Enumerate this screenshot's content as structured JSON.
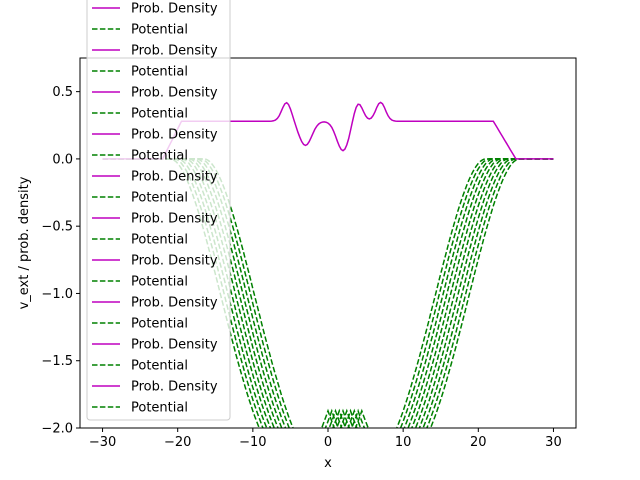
{
  "chart_data": {
    "type": "line",
    "title": "",
    "xlabel": "x",
    "ylabel": "v_ext / prob. density",
    "xlim": [
      -33,
      33
    ],
    "ylim": [
      -2.0,
      0.75
    ],
    "xticks": [
      -30,
      -20,
      -10,
      0,
      10,
      20,
      30
    ],
    "xtick_labels": [
      "−30",
      "−20",
      "−10",
      "0",
      "10",
      "20",
      "30"
    ],
    "yticks": [
      0.5,
      0.0,
      -0.5,
      -1.0,
      -1.5,
      -2.0
    ],
    "ytick_labels": [
      "0.5",
      "0.0",
      "−0.5",
      "−1.0",
      "−1.5",
      "−2.0"
    ],
    "grid": false,
    "legend_placement": "upper-left",
    "colors": {
      "density": "#bf00bf",
      "potential": "#008000",
      "legend_bg": "#ffffff"
    },
    "legend": [
      {
        "label": "Prob. Density",
        "style": "solid",
        "color": "#bf00bf"
      },
      {
        "label": "Potential",
        "style": "dashed",
        "color": "#008000"
      },
      {
        "label": "Prob. Density",
        "style": "solid",
        "color": "#bf00bf"
      },
      {
        "label": "Potential",
        "style": "dashed",
        "color": "#008000"
      },
      {
        "label": "Prob. Density",
        "style": "solid",
        "color": "#bf00bf"
      },
      {
        "label": "Potential",
        "style": "dashed",
        "color": "#008000"
      },
      {
        "label": "Prob. Density",
        "style": "solid",
        "color": "#bf00bf"
      },
      {
        "label": "Potential",
        "style": "dashed",
        "color": "#008000"
      },
      {
        "label": "Prob. Density",
        "style": "solid",
        "color": "#bf00bf"
      },
      {
        "label": "Potential",
        "style": "dashed",
        "color": "#008000"
      },
      {
        "label": "Prob. Density",
        "style": "solid",
        "color": "#bf00bf"
      },
      {
        "label": "Potential",
        "style": "dashed",
        "color": "#008000"
      },
      {
        "label": "Prob. Density",
        "style": "solid",
        "color": "#bf00bf"
      },
      {
        "label": "Potential",
        "style": "dashed",
        "color": "#008000"
      },
      {
        "label": "Prob. Density",
        "style": "solid",
        "color": "#bf00bf"
      },
      {
        "label": "Potential",
        "style": "dashed",
        "color": "#008000"
      },
      {
        "label": "Prob. Density",
        "style": "solid",
        "color": "#bf00bf"
      },
      {
        "label": "Potential",
        "style": "dashed",
        "color": "#008000"
      },
      {
        "label": "Prob. Density",
        "style": "solid",
        "color": "#bf00bf"
      },
      {
        "label": "Potential",
        "style": "dashed",
        "color": "#008000"
      }
    ],
    "series": [
      {
        "kind": "potential",
        "x_range": [
          -30,
          30
        ],
        "well_centers": [
          -5.0,
          5.0
        ],
        "well_depth": -2.0,
        "well_half_width": 16.0
      },
      {
        "kind": "potential",
        "x_range": [
          -30,
          30
        ],
        "well_centers": [
          -4.5,
          5.5
        ],
        "well_depth": -2.0,
        "well_half_width": 16.0
      },
      {
        "kind": "potential",
        "x_range": [
          -30,
          30
        ],
        "well_centers": [
          -4.0,
          6.0
        ],
        "well_depth": -2.0,
        "well_half_width": 16.0
      },
      {
        "kind": "potential",
        "x_range": [
          -30,
          30
        ],
        "well_centers": [
          -3.5,
          6.5
        ],
        "well_depth": -2.0,
        "well_half_width": 16.0
      },
      {
        "kind": "potential",
        "x_range": [
          -30,
          30
        ],
        "well_centers": [
          -3.0,
          7.0
        ],
        "well_depth": -2.0,
        "well_half_width": 16.0
      },
      {
        "kind": "potential",
        "x_range": [
          -30,
          30
        ],
        "well_centers": [
          -2.5,
          7.5
        ],
        "well_depth": -2.0,
        "well_half_width": 16.0
      },
      {
        "kind": "potential",
        "x_range": [
          -30,
          30
        ],
        "well_centers": [
          -2.0,
          8.0
        ],
        "well_depth": -2.0,
        "well_half_width": 16.0
      },
      {
        "kind": "potential",
        "x_range": [
          -30,
          30
        ],
        "well_centers": [
          -1.5,
          8.5
        ],
        "well_depth": -2.0,
        "well_half_width": 16.0
      },
      {
        "kind": "potential",
        "x_range": [
          -30,
          30
        ],
        "well_centers": [
          -1.0,
          9.0
        ],
        "well_depth": -2.0,
        "well_half_width": 16.0
      },
      {
        "kind": "potential",
        "x_range": [
          -30,
          30
        ],
        "well_centers": [
          -0.5,
          9.5
        ],
        "well_depth": -2.0,
        "well_half_width": 16.0
      },
      {
        "kind": "density",
        "x_range": [
          -30,
          30
        ],
        "plateau": 0.28,
        "peaks": [
          {
            "x": -5.5,
            "h": 0.42
          },
          {
            "x": 4.0,
            "h": 0.42
          },
          {
            "x": 7.0,
            "h": 0.42
          }
        ],
        "dips": [
          {
            "x": -3.0,
            "h": 0.1
          },
          {
            "x": 2.0,
            "h": 0.06
          }
        ]
      }
    ]
  }
}
